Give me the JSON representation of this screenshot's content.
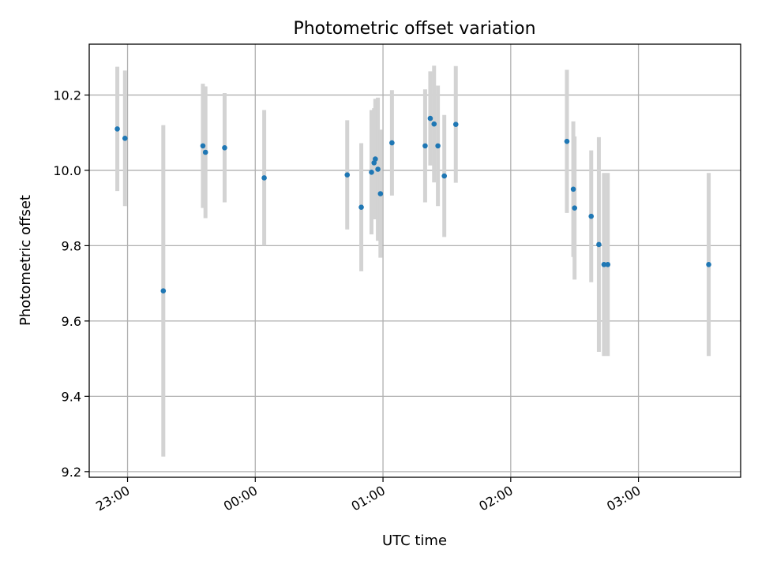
{
  "chart_data": {
    "type": "scatter",
    "title": "Photometric offset variation",
    "xlabel": "UTC time",
    "ylabel": "Photometric offset",
    "xlim": [
      -0.3,
      4.8
    ],
    "ylim": [
      9.185,
      10.335
    ],
    "grid": true,
    "x_unit": "hours after 23:00 UTC",
    "xticks": [
      {
        "value": 0,
        "label": "23:00"
      },
      {
        "value": 1,
        "label": "00:00"
      },
      {
        "value": 2,
        "label": "01:00"
      },
      {
        "value": 3,
        "label": "02:00"
      },
      {
        "value": 4,
        "label": "03:00"
      }
    ],
    "yticks": [
      {
        "value": 9.2,
        "label": "9.2"
      },
      {
        "value": 9.4,
        "label": "9.4"
      },
      {
        "value": 9.6,
        "label": "9.6"
      },
      {
        "value": 9.8,
        "label": "9.8"
      },
      {
        "value": 10.0,
        "label": "10.0"
      },
      {
        "value": 10.2,
        "label": "10.2"
      }
    ],
    "marker_color": "#1f77b4",
    "errorbar_color": "#d3d3d3",
    "points": [
      {
        "x": -0.08,
        "y": 10.11,
        "err": 0.165
      },
      {
        "x": -0.02,
        "y": 10.085,
        "err": 0.18
      },
      {
        "x": 0.28,
        "y": 9.68,
        "err": 0.44
      },
      {
        "x": 0.59,
        "y": 10.065,
        "err": 0.165
      },
      {
        "x": 0.61,
        "y": 10.048,
        "err": 0.175
      },
      {
        "x": 0.76,
        "y": 10.06,
        "err": 0.145
      },
      {
        "x": 1.07,
        "y": 9.98,
        "err": 0.18
      },
      {
        "x": 1.72,
        "y": 9.988,
        "err": 0.145
      },
      {
        "x": 1.83,
        "y": 9.902,
        "err": 0.17
      },
      {
        "x": 1.91,
        "y": 9.995,
        "err": 0.165
      },
      {
        "x": 1.93,
        "y": 10.02,
        "err": 0.145
      },
      {
        "x": 1.94,
        "y": 10.03,
        "err": 0.16
      },
      {
        "x": 1.96,
        "y": 10.003,
        "err": 0.19
      },
      {
        "x": 1.98,
        "y": 9.938,
        "err": 0.17
      },
      {
        "x": 2.07,
        "y": 10.073,
        "err": 0.14
      },
      {
        "x": 2.33,
        "y": 10.065,
        "err": 0.15
      },
      {
        "x": 2.37,
        "y": 10.138,
        "err": 0.125
      },
      {
        "x": 2.4,
        "y": 10.123,
        "err": 0.155
      },
      {
        "x": 2.43,
        "y": 10.065,
        "err": 0.16
      },
      {
        "x": 2.48,
        "y": 9.985,
        "err": 0.162
      },
      {
        "x": 2.57,
        "y": 10.122,
        "err": 0.155
      },
      {
        "x": 3.44,
        "y": 10.077,
        "err": 0.19
      },
      {
        "x": 3.49,
        "y": 9.95,
        "err": 0.18
      },
      {
        "x": 3.5,
        "y": 9.9,
        "err": 0.19
      },
      {
        "x": 3.63,
        "y": 9.878,
        "err": 0.175
      },
      {
        "x": 3.69,
        "y": 9.803,
        "err": 0.285
      },
      {
        "x": 3.73,
        "y": 9.75,
        "err": 0.243
      },
      {
        "x": 3.76,
        "y": 9.75,
        "err": 0.243
      },
      {
        "x": 4.55,
        "y": 9.75,
        "err": 0.243
      }
    ]
  }
}
